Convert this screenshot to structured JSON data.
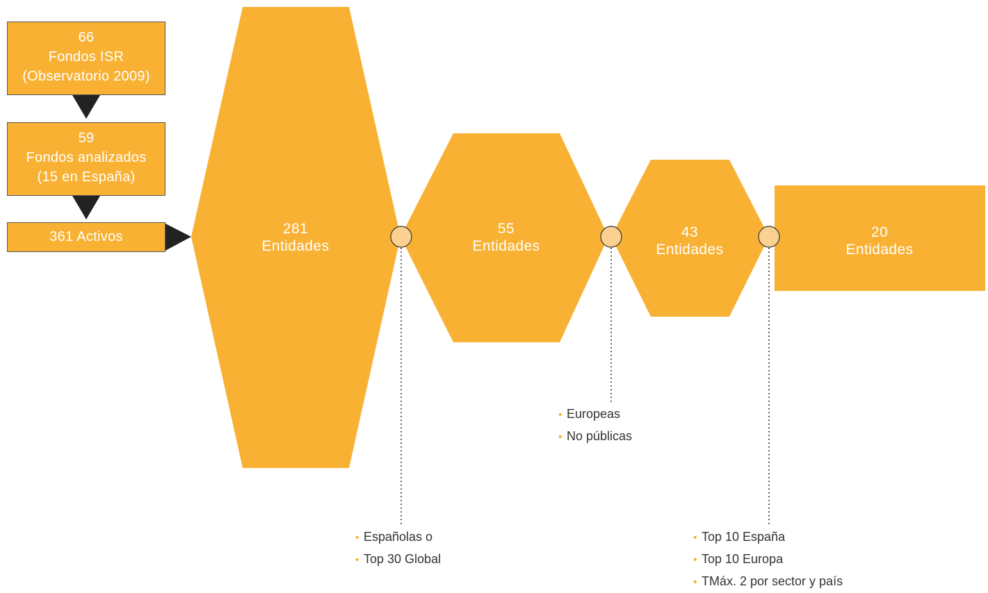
{
  "colors": {
    "accent": "#f8b133",
    "node": "#fbd191",
    "arrow": "#222222",
    "text": "#333333"
  },
  "source_boxes": [
    {
      "lines": [
        "66",
        "Fondos ISR",
        "(Observatorio 2009)"
      ]
    },
    {
      "lines": [
        "59",
        "Fondos analizados",
        "(15 en España)"
      ]
    },
    {
      "lines": [
        "361 Activos"
      ]
    }
  ],
  "stages": [
    {
      "value": "281",
      "unit": "Entidades"
    },
    {
      "value": "55",
      "unit": "Entidades"
    },
    {
      "value": "43",
      "unit": "Entidades"
    },
    {
      "value": "20",
      "unit": "Entidades"
    }
  ],
  "filters": [
    {
      "bullets": [
        "Españolas o",
        "Top 30 Global"
      ]
    },
    {
      "bullets": [
        "Europeas",
        "No públicas"
      ]
    },
    {
      "bullets": [
        "Top 10 España",
        "Top 10 Europa",
        "TMáx. 2 por sector y país"
      ]
    }
  ]
}
